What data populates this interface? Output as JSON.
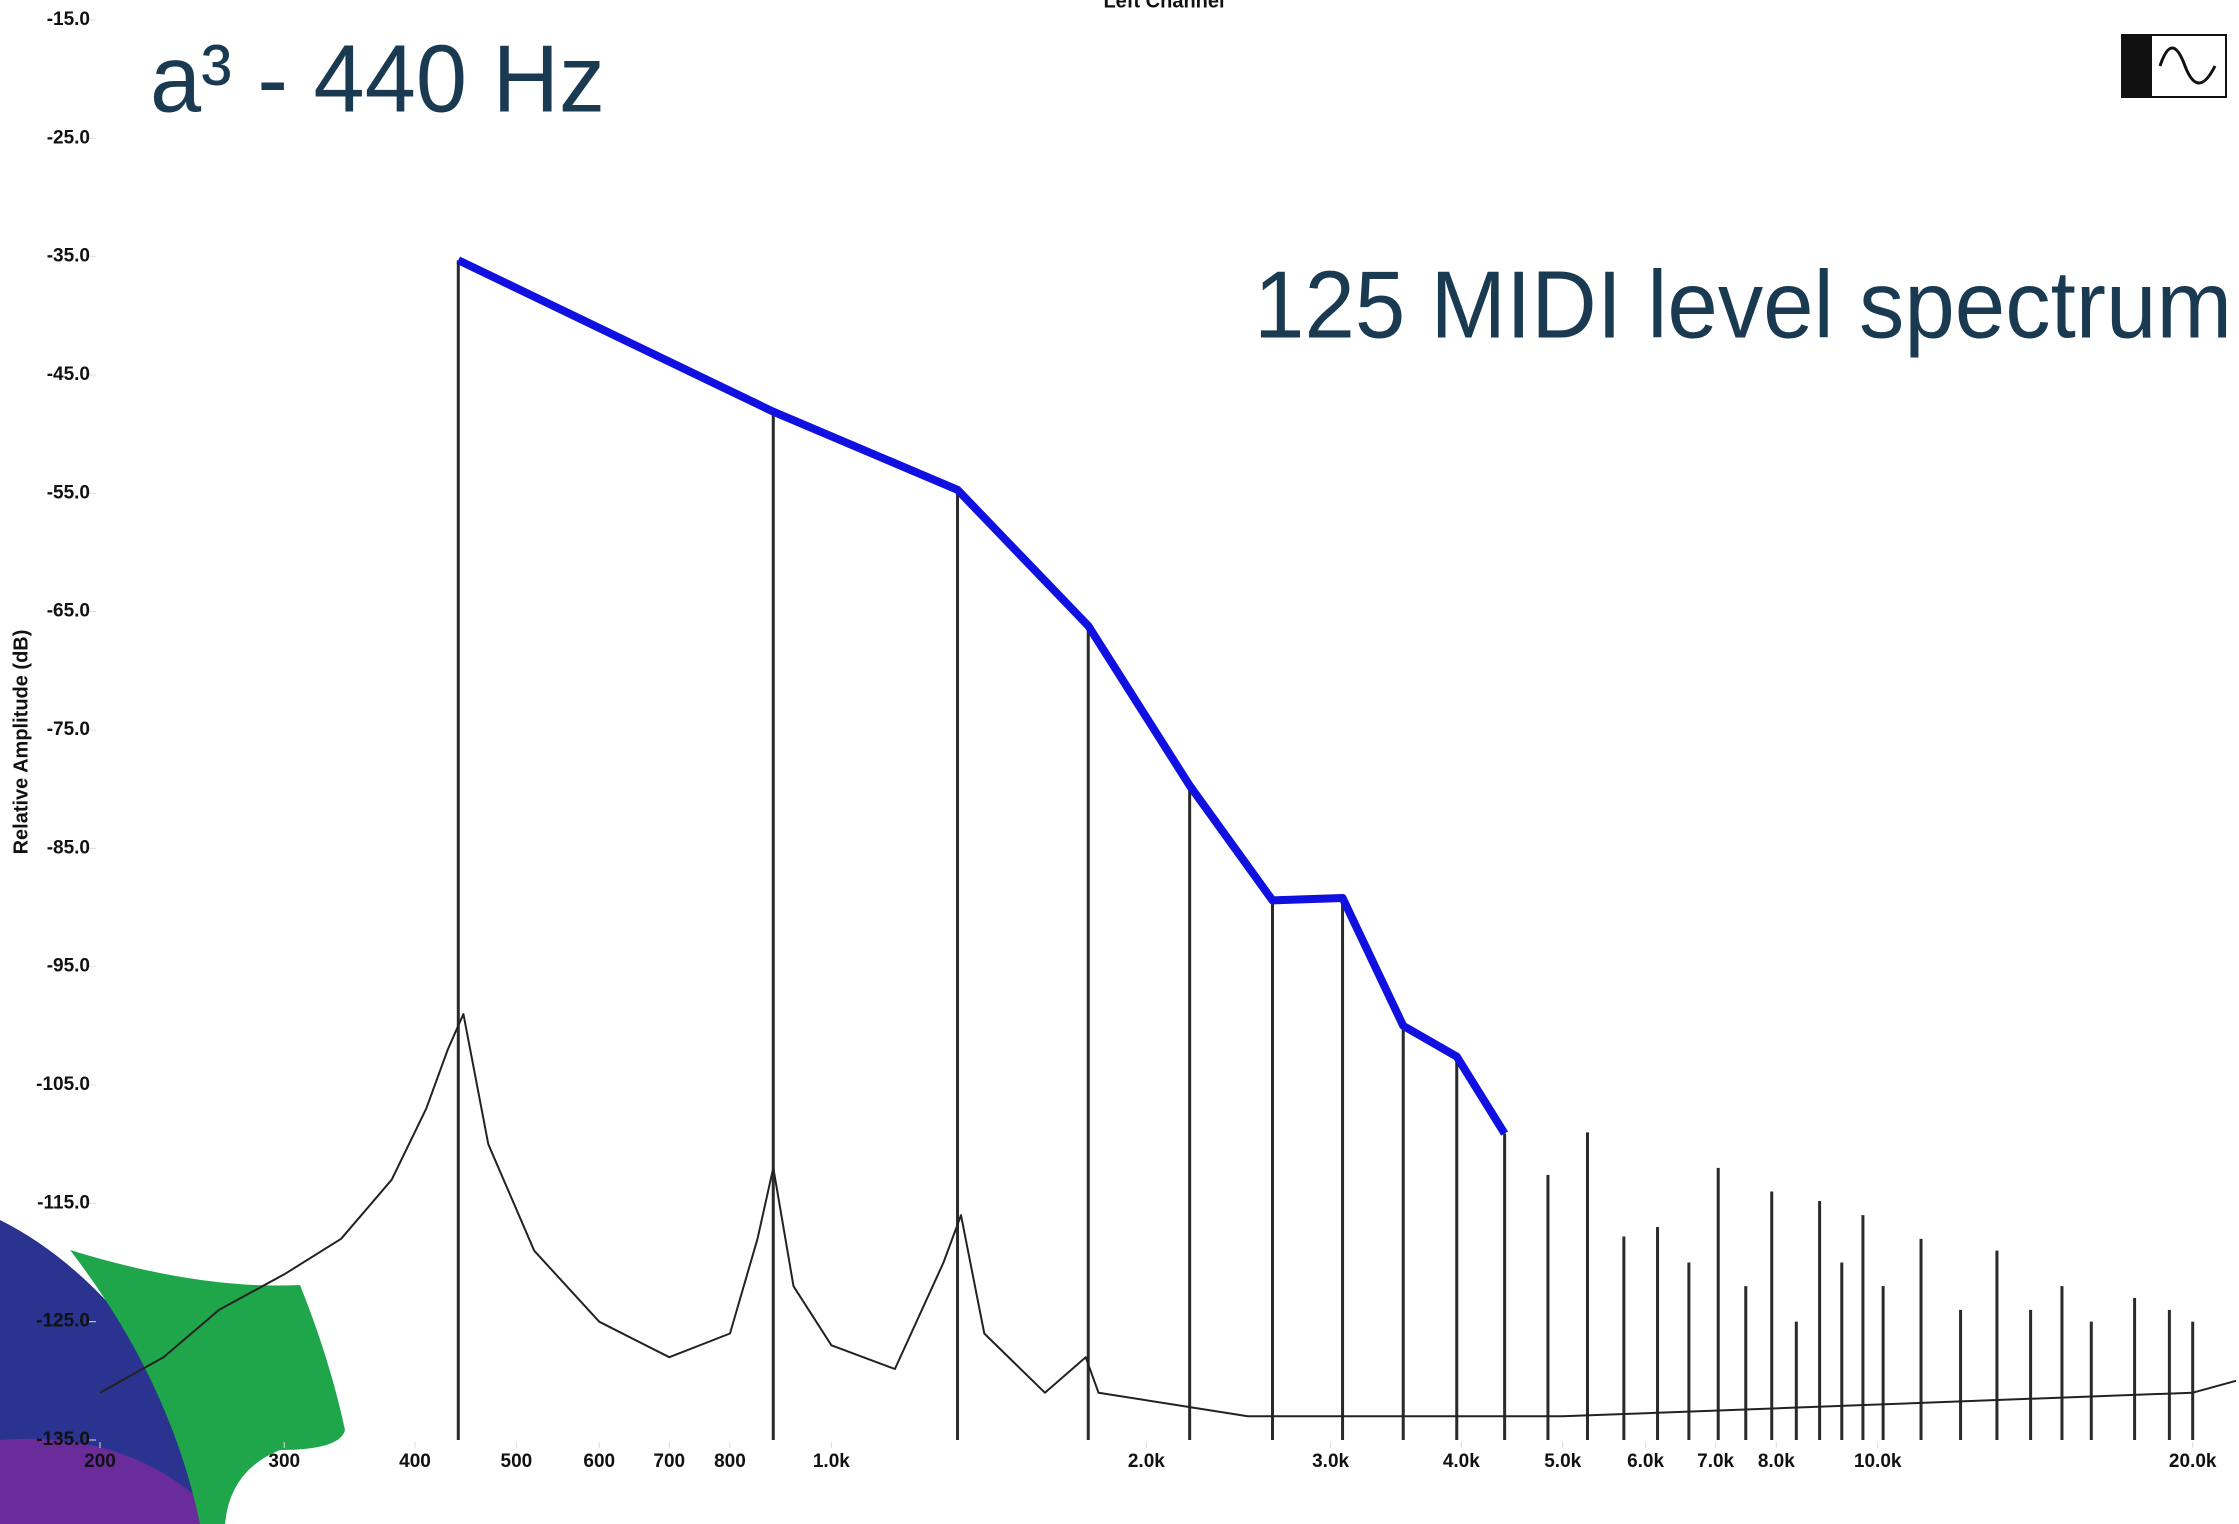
{
  "chart_data": {
    "type": "line",
    "title": "a³ - 440 Hz",
    "subtitle": "Left Channel",
    "annotation": "125 MIDI level spectrum",
    "y_label": "Relative Amplitude (dB)",
    "x_scale": "log",
    "xlim": [
      200,
      22000
    ],
    "ylim": [
      -135,
      -15
    ],
    "xticks": [
      200,
      300,
      400,
      500,
      600,
      700,
      800,
      {
        "value": 1000,
        "label": "1.0k"
      },
      {
        "value": 2000,
        "label": "2.0k"
      },
      {
        "value": 3000,
        "label": "3.0k"
      },
      {
        "value": 4000,
        "label": "4.0k"
      },
      {
        "value": 5000,
        "label": "5.0k"
      },
      {
        "value": 6000,
        "label": "6.0k"
      },
      {
        "value": 7000,
        "label": "7.0k"
      },
      {
        "value": 8000,
        "label": "8.0k"
      },
      {
        "value": 10000,
        "label": "10.0k"
      },
      {
        "value": 20000,
        "label": "20.0k"
      }
    ],
    "yticks": [
      {
        "value": -15,
        "label": "-15.0"
      },
      {
        "value": -25,
        "label": "-25.0"
      },
      {
        "value": -35,
        "label": "-35.0"
      },
      {
        "value": -45,
        "label": "-45.0"
      },
      {
        "value": -55,
        "label": "-55.0"
      },
      {
        "value": -65,
        "label": "-65.0"
      },
      {
        "value": -75,
        "label": "-75.0"
      },
      {
        "value": -85,
        "label": "-85.0"
      },
      {
        "value": -95,
        "label": "-95.0"
      },
      {
        "value": -105,
        "label": "-105.0"
      },
      {
        "value": -115,
        "label": "-115.0"
      },
      {
        "value": -125,
        "label": "-125.0"
      },
      {
        "value": -135,
        "label": "-135.0"
      }
    ],
    "series": [
      {
        "style": "line",
        "color": "#1010e0",
        "width": 8,
        "x": [
          440,
          880,
          1320,
          1760,
          2200,
          2640,
          3080,
          3520,
          3960,
          4400
        ],
        "values": [
          -35.3,
          -48.1,
          -54.7,
          -66.2,
          -79.7,
          -89.4,
          -89.2,
          -100,
          -102.6,
          -109.1
        ]
      },
      {
        "style": "stem",
        "color": "#2a2a2a",
        "width": 3,
        "x": [
          440,
          880,
          1320,
          1760,
          2200,
          2640,
          3080,
          3520,
          3960,
          4400,
          4840,
          5280,
          5720,
          6160,
          6600,
          7040,
          7480,
          7920,
          8360,
          8800,
          9240,
          9680,
          10120,
          11000,
          12000,
          13000,
          14000,
          15000,
          16000,
          17600,
          19000,
          20000
        ],
        "values": [
          -35.3,
          -48.1,
          -54.7,
          -66.2,
          -79.7,
          -89.4,
          -89.2,
          -100,
          -102.6,
          -109.1,
          -112.6,
          -109,
          -117.8,
          -117,
          -120,
          -112,
          -122,
          -114,
          -125,
          -114.8,
          -120,
          -116,
          -122,
          -118,
          -124,
          -119,
          -124,
          -122,
          -125,
          -123,
          -124,
          -125
        ]
      },
      {
        "style": "line",
        "color": "#222222",
        "width": 2,
        "x": [
          200,
          230,
          260,
          300,
          340,
          380,
          410,
          430,
          445,
          470,
          520,
          600,
          700,
          800,
          850,
          880,
          920,
          1000,
          1150,
          1280,
          1330,
          1400,
          1600,
          1750,
          1800,
          2500,
          5000,
          10000,
          20000,
          22000
        ],
        "values": [
          -131,
          -128,
          -124,
          -121,
          -118,
          -113,
          -107,
          -102,
          -99,
          -110,
          -119,
          -125,
          -128,
          -126,
          -118,
          -112,
          -122,
          -127,
          -129,
          -120,
          -116,
          -126,
          -131,
          -128,
          -131,
          -133,
          -133,
          -132,
          -131,
          -130
        ]
      }
    ]
  }
}
